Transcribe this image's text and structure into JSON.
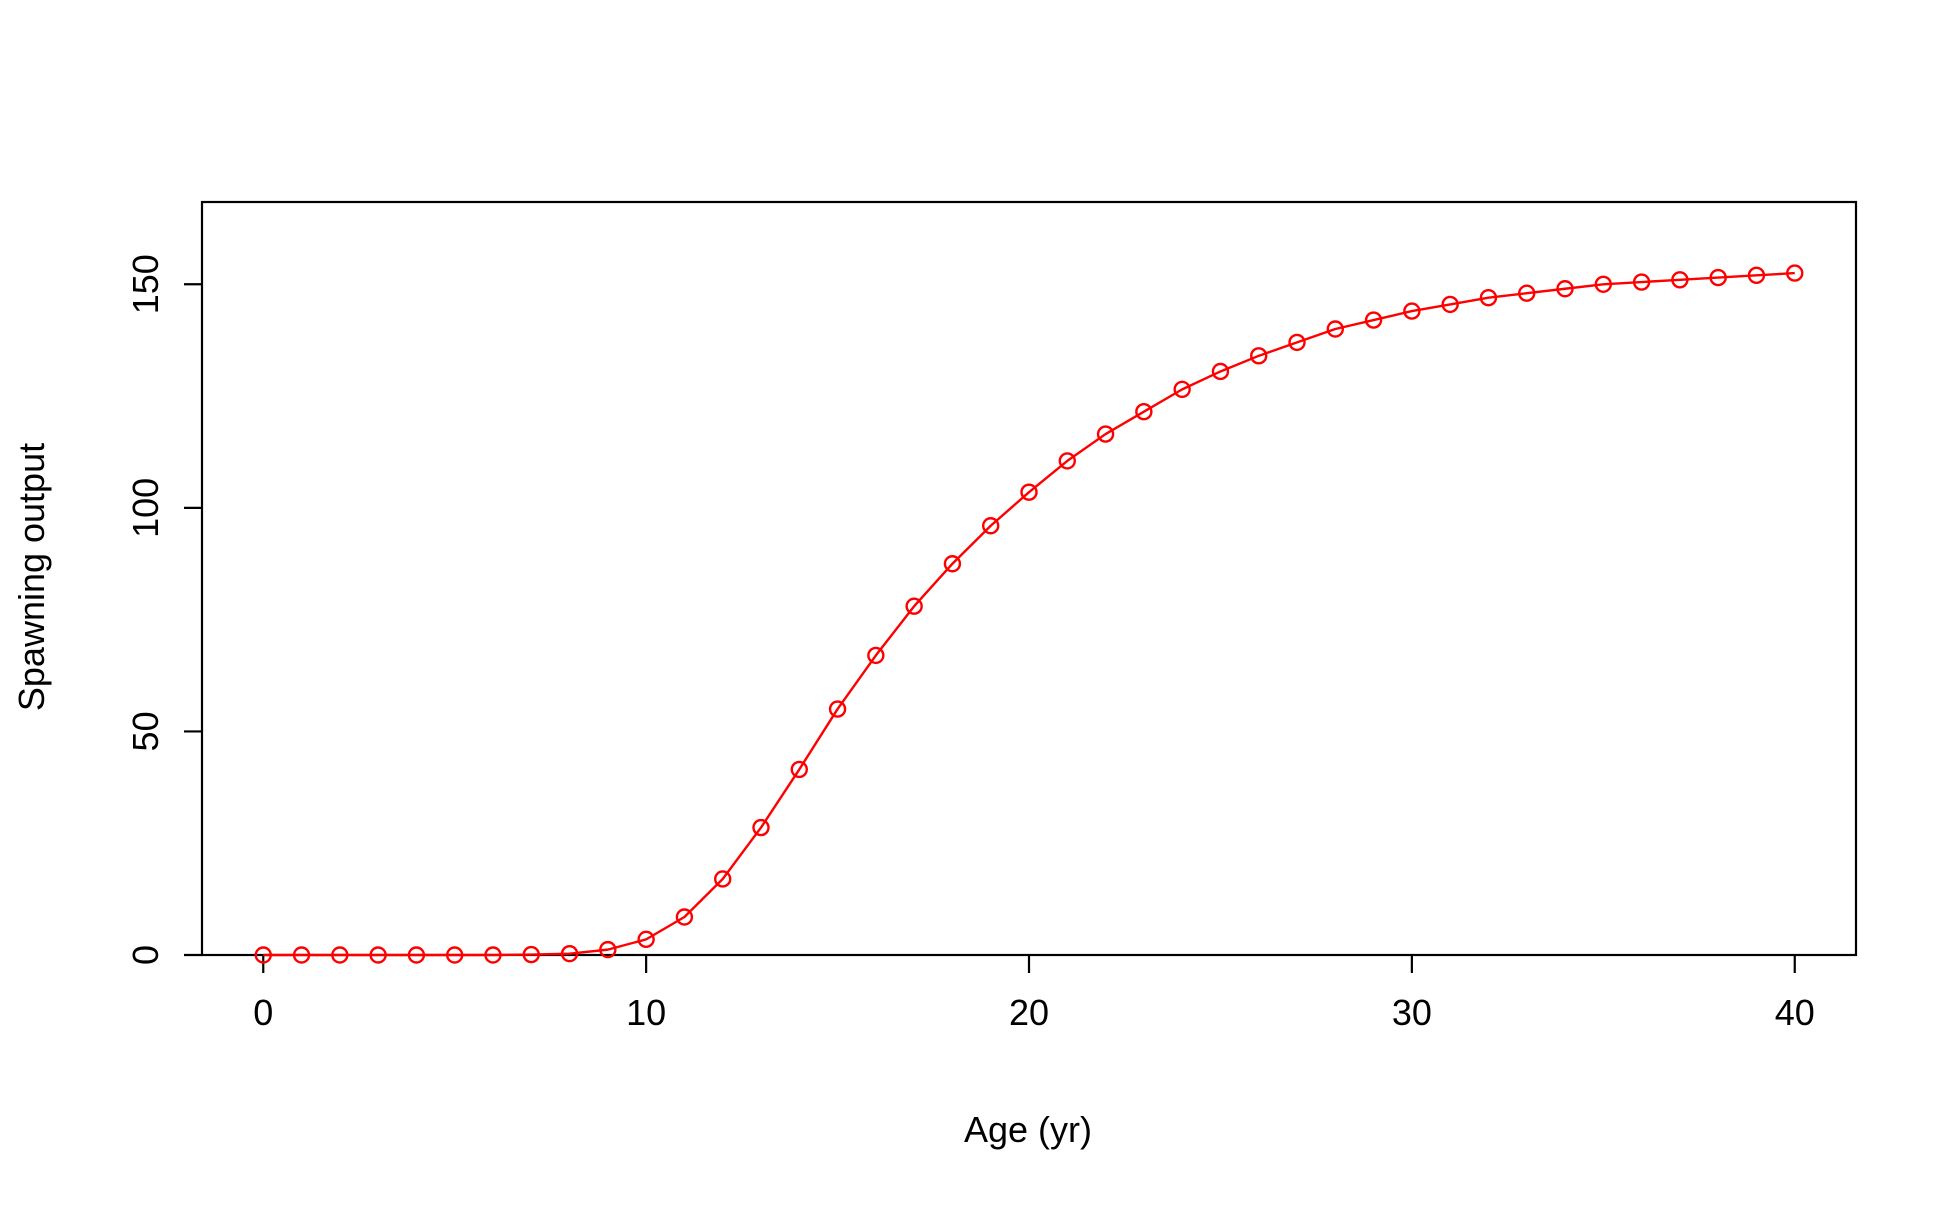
{
  "chart_data": {
    "type": "line",
    "title": "",
    "xlabel": "Age (yr)",
    "ylabel": "Spawning output",
    "xlim": [
      -1.6,
      41.6
    ],
    "ylim": [
      0,
      168.4
    ],
    "x_ticks": [
      0,
      10,
      20,
      30,
      40
    ],
    "y_ticks": [
      0,
      50,
      100,
      150
    ],
    "grid": false,
    "legend": "none",
    "series": [
      {
        "color": "#ff0000",
        "marker": "open-circle",
        "x": [
          0,
          1,
          2,
          3,
          4,
          5,
          6,
          7,
          8,
          9,
          10,
          11,
          12,
          13,
          14,
          15,
          16,
          17,
          18,
          19,
          20,
          21,
          22,
          23,
          24,
          25,
          26,
          27,
          28,
          29,
          30,
          31,
          32,
          33,
          34,
          35,
          36,
          37,
          38,
          39,
          40
        ],
        "values": [
          0,
          0,
          0,
          0,
          0,
          0,
          0,
          0.1,
          0.3,
          1.2,
          3.5,
          8.5,
          17,
          28.5,
          41.5,
          55,
          67,
          78,
          87.5,
          96,
          103.5,
          110.5,
          116.5,
          121.5,
          126.5,
          130.5,
          134,
          137,
          140,
          142,
          144,
          145.5,
          147,
          148,
          149,
          150,
          150.5,
          151,
          151.5,
          152,
          152.5
        ]
      }
    ]
  }
}
